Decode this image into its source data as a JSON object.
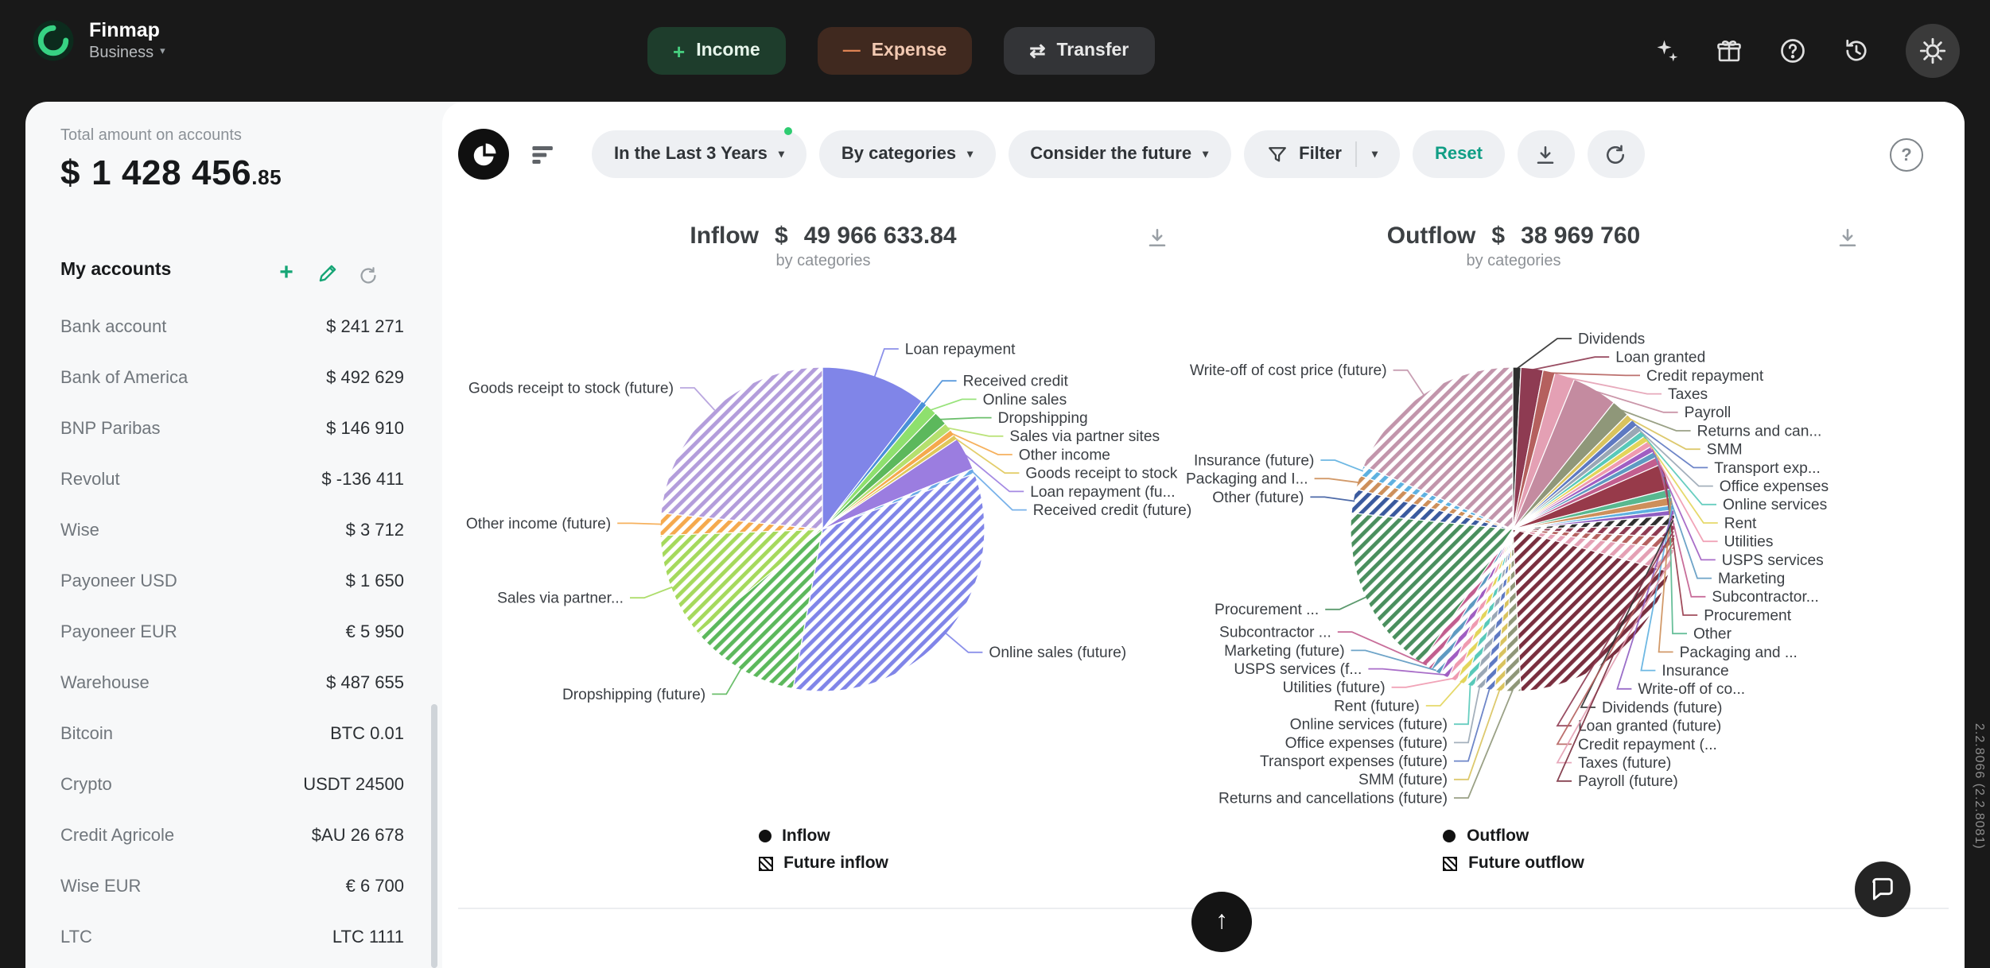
{
  "icons": {
    "plus": "+",
    "minus": "—",
    "transfer_arrows": "⇄",
    "chevron_down": "▾",
    "question_mark": "?",
    "up_arrow": "↑"
  },
  "topbar": {
    "brand": "Finmap",
    "workspace": "Business",
    "income_label": "Income",
    "expense_label": "Expense",
    "transfer_label": "Transfer"
  },
  "sidebar": {
    "total_label": "Total amount on accounts",
    "total_currency": "$",
    "total_amount": "1 428 456",
    "total_cents": ".85",
    "my_accounts_label": "My accounts",
    "accounts": [
      {
        "name": "Bank account",
        "value": "$ 241 271"
      },
      {
        "name": "Bank of America",
        "value": "$ 492 629"
      },
      {
        "name": "BNP Paribas",
        "value": "$ 146 910"
      },
      {
        "name": "Revolut",
        "value": "$ -136 411"
      },
      {
        "name": "Wise",
        "value": "$ 3 712"
      },
      {
        "name": "Payoneer USD",
        "value": "$ 1 650"
      },
      {
        "name": "Payoneer EUR",
        "value": "€ 5 950"
      },
      {
        "name": "Warehouse",
        "value": "$ 487 655"
      },
      {
        "name": "Bitcoin",
        "value": "BTC 0.01"
      },
      {
        "name": "Crypto",
        "value": "USDT 24500"
      },
      {
        "name": "Credit Agricole",
        "value": "$AU 26 678"
      },
      {
        "name": "Wise EUR",
        "value": "€ 6 700"
      },
      {
        "name": "LTC",
        "value": "LTC 1111"
      }
    ]
  },
  "toolbar": {
    "period_label": "In the Last 3 Years",
    "grouping_label": "By categories",
    "future_label": "Consider the future",
    "filter_label": "Filter",
    "reset_label": "Reset"
  },
  "chart_data": [
    {
      "type": "pie",
      "title": "Inflow",
      "currency": "$",
      "amount": "49 966 633.84",
      "subtitle": "by categories",
      "legend": [
        "Inflow",
        "Future inflow"
      ],
      "values_unit": "percent_of_total_estimated",
      "slices": [
        {
          "label": "Loan repayment",
          "value": 10.5,
          "color": "#8085e8"
        },
        {
          "label": "Received credit",
          "value": 0.6,
          "color": "#4a90d9"
        },
        {
          "label": "Online sales",
          "value": 1.2,
          "color": "#8ee06e"
        },
        {
          "label": "Dropshipping",
          "value": 1.4,
          "color": "#5cb85c"
        },
        {
          "label": "Sales via partner sites",
          "value": 0.8,
          "color": "#b5e06e"
        },
        {
          "label": "Other income",
          "value": 0.6,
          "color": "#f5a94d"
        },
        {
          "label": "Goods receipt to stock",
          "value": 0.5,
          "color": "#e0c85a"
        },
        {
          "label": "Loan repayment (fu...",
          "value": 3.3,
          "color": "#9b7de0"
        },
        {
          "label": "Received credit (future)",
          "value": 0.5,
          "color": "#6aaae8",
          "hatch": true
        },
        {
          "label": "Online sales (future)",
          "value": 33.5,
          "color": "#8085e8",
          "hatch": true
        },
        {
          "label": "Dropshipping (future)",
          "value": 11.0,
          "color": "#5cb85c",
          "hatch": true
        },
        {
          "label": "Sales via partner...",
          "value": 10.5,
          "color": "#a5d95c",
          "hatch": true
        },
        {
          "label": "Other income (future)",
          "value": 2.2,
          "color": "#f5a94d",
          "hatch": true
        },
        {
          "label": "Goods receipt to stock (future)",
          "value": 23.4,
          "color": "#b39ddb",
          "hatch": true
        }
      ]
    },
    {
      "type": "pie",
      "title": "Outflow",
      "currency": "$",
      "amount": "38 969 760",
      "subtitle": "by categories",
      "legend": [
        "Outflow",
        "Future outflow"
      ],
      "values_unit": "percent_of_total_estimated",
      "slices": [
        {
          "label": "Dividends",
          "value": 0.8,
          "color": "#2f2f2f"
        },
        {
          "label": "Loan granted",
          "value": 2.2,
          "color": "#8e3b52"
        },
        {
          "label": "Credit repayment",
          "value": 1.2,
          "color": "#b5605e"
        },
        {
          "label": "Taxes",
          "value": 2.0,
          "color": "#e4a0b4"
        },
        {
          "label": "Payroll",
          "value": 4.5,
          "color": "#c48ba0"
        },
        {
          "label": "Returns and can...",
          "value": 1.8,
          "color": "#8f9779"
        },
        {
          "label": "SMM",
          "value": 0.7,
          "color": "#d9c35e"
        },
        {
          "label": "Transport exp...",
          "value": 0.7,
          "color": "#5e79c2"
        },
        {
          "label": "Office expenses",
          "value": 0.7,
          "color": "#9aa7b5"
        },
        {
          "label": "Online services",
          "value": 0.6,
          "color": "#58c9b9"
        },
        {
          "label": "Rent",
          "value": 0.6,
          "color": "#e3d55b"
        },
        {
          "label": "Utilities",
          "value": 0.6,
          "color": "#ef9ab0"
        },
        {
          "label": "USPS services",
          "value": 0.6,
          "color": "#a05ec2"
        },
        {
          "label": "Marketing",
          "value": 0.6,
          "color": "#5e9ac2"
        },
        {
          "label": "Subcontractor...",
          "value": 0.8,
          "color": "#c25e8f"
        },
        {
          "label": "Procurement",
          "value": 2.6,
          "color": "#973a4a"
        },
        {
          "label": "Other",
          "value": 0.8,
          "color": "#58b88f"
        },
        {
          "label": "Packaging and ...",
          "value": 0.8,
          "color": "#cd8f5a"
        },
        {
          "label": "Insurance",
          "value": 0.5,
          "color": "#5eb0e0"
        },
        {
          "label": "Write-off of co...",
          "value": 0.5,
          "color": "#8f5ec2"
        },
        {
          "label": "Dividends (future)",
          "value": 1.0,
          "color": "#2f2f2f",
          "hatch": true
        },
        {
          "label": "Loan granted (future)",
          "value": 1.2,
          "color": "#8e3b52",
          "hatch": true
        },
        {
          "label": "Credit repayment (...",
          "value": 1.2,
          "color": "#b5605e",
          "hatch": true
        },
        {
          "label": "Taxes (future)",
          "value": 2.2,
          "color": "#e4a0b4",
          "hatch": true
        },
        {
          "label": "Payroll (future)",
          "value": 20.0,
          "color": "#7a2f3f",
          "hatch": true
        },
        {
          "label": "Returns and cancellations (future)",
          "value": 1.6,
          "color": "#8f9779",
          "hatch": true
        },
        {
          "label": "SMM (future)",
          "value": 1.0,
          "color": "#d9c35e",
          "hatch": true
        },
        {
          "label": "Transport expenses (future)",
          "value": 1.0,
          "color": "#5e79c2",
          "hatch": true
        },
        {
          "label": "Office expenses (future)",
          "value": 1.0,
          "color": "#9aa7b5",
          "hatch": true
        },
        {
          "label": "Online services (future)",
          "value": 0.9,
          "color": "#58c9b9",
          "hatch": true
        },
        {
          "label": "Rent (future)",
          "value": 0.9,
          "color": "#e3d55b",
          "hatch": true
        },
        {
          "label": "Utilities (future)",
          "value": 0.9,
          "color": "#ef9ab0",
          "hatch": true
        },
        {
          "label": "USPS services (f...",
          "value": 0.9,
          "color": "#a05ec2",
          "hatch": true
        },
        {
          "label": "Marketing (future)",
          "value": 1.0,
          "color": "#5e9ac2",
          "hatch": true
        },
        {
          "label": "Subcontractor ...",
          "value": 1.2,
          "color": "#c25e8f",
          "hatch": true
        },
        {
          "label": "Procurement ...",
          "value": 17.0,
          "color": "#4a8f5e",
          "hatch": true
        },
        {
          "label": "Other (future)",
          "value": 2.4,
          "color": "#3a5a9e",
          "hatch": true
        },
        {
          "label": "Packaging and I...",
          "value": 1.4,
          "color": "#cd8f5a",
          "hatch": true
        },
        {
          "label": "Insurance (future)",
          "value": 1.0,
          "color": "#5eb0e0",
          "hatch": true
        },
        {
          "label": "Write-off of cost price (future)",
          "value": 18.6,
          "color": "#c295ab",
          "hatch": true
        }
      ]
    }
  ],
  "footer": {
    "version": "2.2.8066 (2.2.8081)"
  }
}
